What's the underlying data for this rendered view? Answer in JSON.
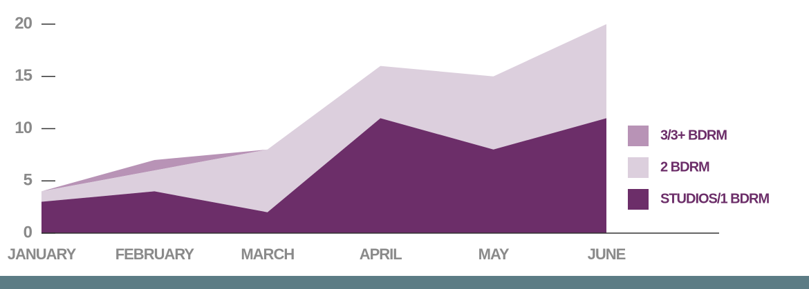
{
  "chart_data": {
    "type": "stacked_area",
    "categories": [
      "JANUARY",
      "FEBRUARY",
      "MARCH",
      "APRIL",
      "MAY",
      "JUNE"
    ],
    "series": [
      {
        "name": "3/3+ BDRM",
        "color": "#b893b6",
        "values": [
          0,
          1,
          0,
          0,
          0,
          0
        ]
      },
      {
        "name": "2 BDRM",
        "color": "#dccfdd",
        "values": [
          1,
          2,
          6,
          5,
          7,
          9
        ]
      },
      {
        "name": "STUDIOS/1 BDRM",
        "color": "#6c2e69",
        "values": [
          3,
          4,
          2,
          11,
          8,
          11
        ]
      }
    ],
    "ylim": [
      0,
      20
    ],
    "yticks": [
      0,
      5,
      10,
      15,
      20
    ],
    "legend": "right"
  }
}
